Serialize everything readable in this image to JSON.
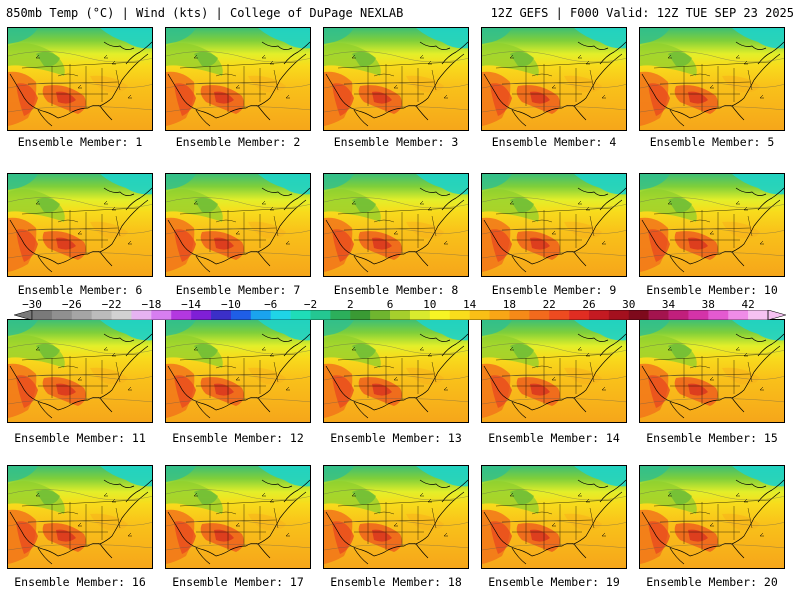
{
  "header": {
    "left_title": "850mb Temp (°C) | Wind (kts) | College of DuPage NEXLAB",
    "right_title": "12Z GEFS | F000 Valid: 12Z TUE SEP 23 2025"
  },
  "colorbar": {
    "ticks": [
      "−30",
      "−26",
      "−22",
      "−18",
      "−14",
      "−10",
      "−6",
      "−2",
      "2",
      "6",
      "10",
      "14",
      "18",
      "22",
      "26",
      "30",
      "34",
      "38",
      "42"
    ],
    "colors": [
      "#7a7a7a",
      "#909090",
      "#a5a5a5",
      "#bcbcbc",
      "#d2d2d2",
      "#e6b3f2",
      "#d77ef0",
      "#b338e0",
      "#7f1fd6",
      "#3b2fc8",
      "#1f5ee6",
      "#1aa3ee",
      "#1fd4e6",
      "#1fdcb8",
      "#24c792",
      "#2caf5b",
      "#3a9a34",
      "#6fb52f",
      "#a6cf2c",
      "#d9ea2e",
      "#f7f424",
      "#f8dc1c",
      "#f9bf16",
      "#f8a616",
      "#f68a18",
      "#f26a1d",
      "#ed4b20",
      "#e02d22",
      "#c41a22",
      "#a4101e",
      "#7e0a1c",
      "#a3144e",
      "#c11f7c",
      "#d433a8",
      "#e35ad0",
      "#ef8ce8",
      "#f6c2f2"
    ]
  },
  "members": [
    {
      "label": "Ensemble Member: 1"
    },
    {
      "label": "Ensemble Member: 2"
    },
    {
      "label": "Ensemble Member: 3"
    },
    {
      "label": "Ensemble Member: 4"
    },
    {
      "label": "Ensemble Member: 5"
    },
    {
      "label": "Ensemble Member: 6"
    },
    {
      "label": "Ensemble Member: 7"
    },
    {
      "label": "Ensemble Member: 8"
    },
    {
      "label": "Ensemble Member: 9"
    },
    {
      "label": "Ensemble Member: 10"
    },
    {
      "label": "Ensemble Member: 11"
    },
    {
      "label": "Ensemble Member: 12"
    },
    {
      "label": "Ensemble Member: 13"
    },
    {
      "label": "Ensemble Member: 14"
    },
    {
      "label": "Ensemble Member: 15"
    },
    {
      "label": "Ensemble Member: 16"
    },
    {
      "label": "Ensemble Member: 17"
    },
    {
      "label": "Ensemble Member: 18"
    },
    {
      "label": "Ensemble Member: 19"
    },
    {
      "label": "Ensemble Member: 20"
    }
  ]
}
